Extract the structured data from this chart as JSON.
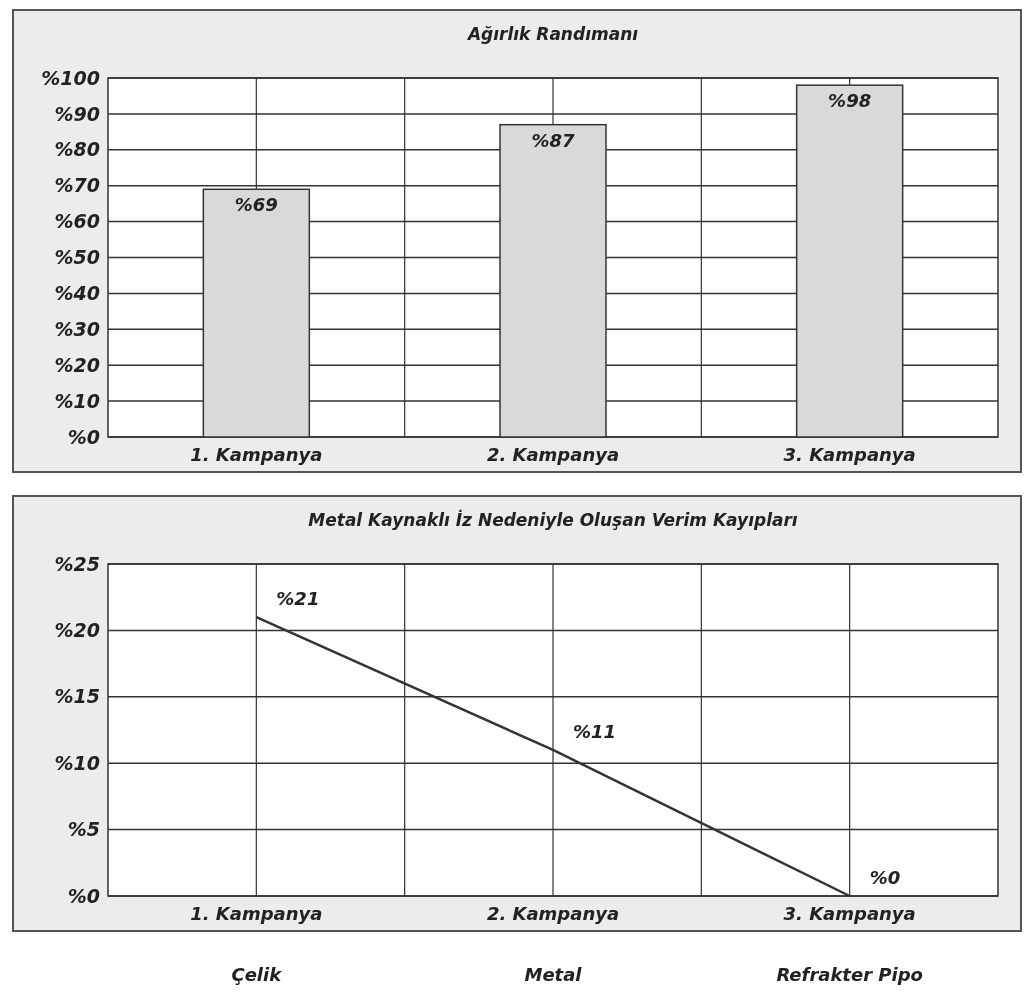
{
  "chart_data": [
    {
      "type": "bar",
      "title": "Ağırlık Randımanı",
      "categories": [
        "1. Kampanya",
        "2. Kampanya",
        "3. Kampanya"
      ],
      "values": [
        69,
        87,
        98
      ],
      "value_labels": [
        "%69",
        "%87",
        "%98"
      ],
      "color": "#d9d9d9",
      "ylim": [
        0,
        100
      ],
      "yticks": [
        {
          "value": 0,
          "label": "%0"
        },
        {
          "value": 10,
          "label": "%10"
        },
        {
          "value": 20,
          "label": "%20"
        },
        {
          "value": 30,
          "label": "%30"
        },
        {
          "value": 40,
          "label": "%40"
        },
        {
          "value": 50,
          "label": "%50"
        },
        {
          "value": 60,
          "label": "%60"
        },
        {
          "value": 70,
          "label": "%70"
        },
        {
          "value": 80,
          "label": "%80"
        },
        {
          "value": 90,
          "label": "%90"
        },
        {
          "value": 100,
          "label": "%100"
        }
      ],
      "grid": true
    },
    {
      "type": "line",
      "title": "Metal Kaynaklı İz Nedeniyle Oluşan Verim Kayıpları",
      "categories": [
        "1. Kampanya",
        "2. Kampanya",
        "3. Kampanya"
      ],
      "values": [
        21,
        11,
        0
      ],
      "value_labels": [
        "%21",
        "%11",
        "%0"
      ],
      "color": "#333333",
      "ylim": [
        0,
        25
      ],
      "yticks": [
        {
          "value": 0,
          "label": "%0"
        },
        {
          "value": 5,
          "label": "%5"
        },
        {
          "value": 10,
          "label": "%10"
        },
        {
          "value": 15,
          "label": "%15"
        },
        {
          "value": 20,
          "label": "%20"
        },
        {
          "value": 25,
          "label": "%25"
        }
      ],
      "grid": true,
      "marker": "none",
      "line_style": "solid",
      "annotations": [
        "Çelik",
        "Metal",
        "Refrakter Pipo"
      ]
    }
  ]
}
